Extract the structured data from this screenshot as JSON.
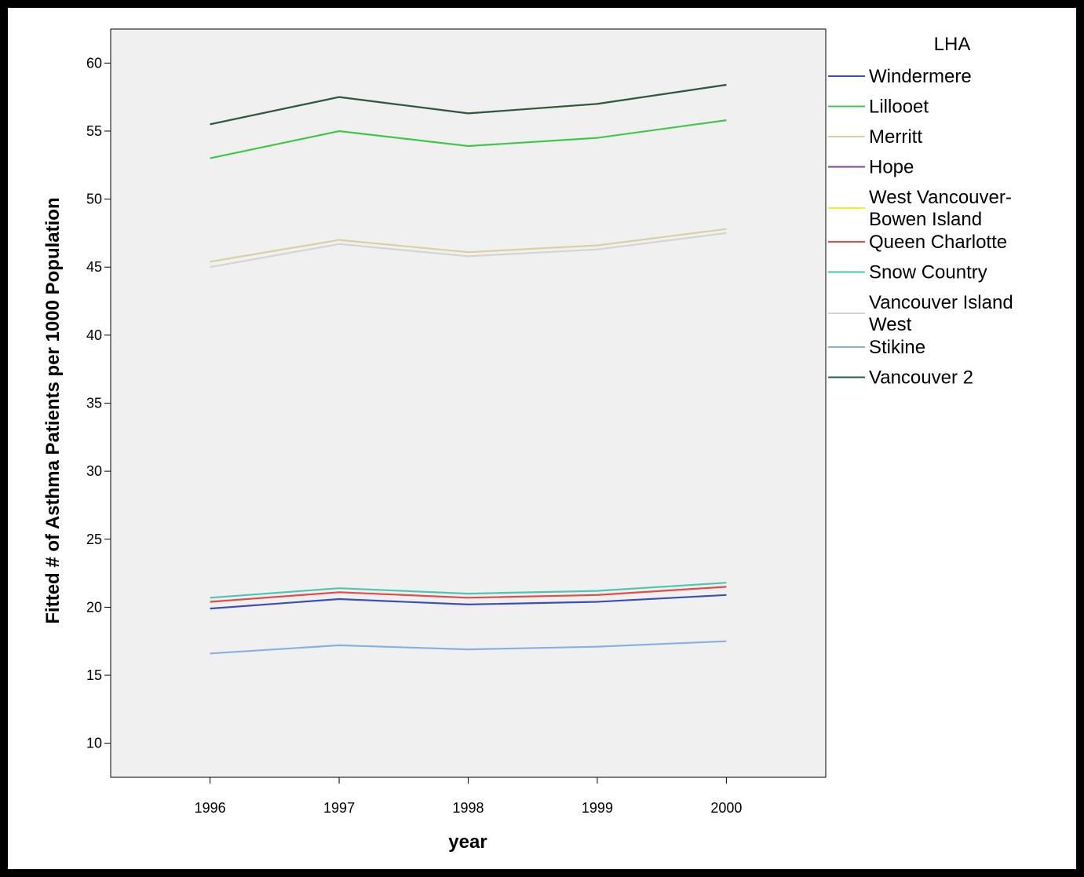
{
  "chart_data": {
    "type": "line",
    "title": "",
    "xlabel": "year",
    "ylabel": "Fitted # of Asthma Patients per 1000 Population",
    "x": [
      1996,
      1997,
      1998,
      1999,
      2000
    ],
    "xlim": [
      1995.23,
      2000.77
    ],
    "ylim": [
      7.5,
      62.5
    ],
    "yticks": [
      10,
      15,
      20,
      25,
      30,
      35,
      40,
      45,
      50,
      55,
      60
    ],
    "grid": false,
    "legend_title": "LHA",
    "legend_position": "right",
    "series": [
      {
        "name": [
          "Windermere"
        ],
        "color": "#3b4fb8",
        "values": [
          19.9,
          20.6,
          20.2,
          20.4,
          20.9
        ]
      },
      {
        "name": [
          "Lillooet"
        ],
        "color": "#3ec84a",
        "values": [
          53.0,
          55.0,
          53.9,
          54.5,
          55.8
        ]
      },
      {
        "name": [
          "Merritt"
        ],
        "color": "#d8d0a0",
        "values": [
          45.4,
          47.0,
          46.1,
          46.6,
          47.8
        ]
      },
      {
        "name": [
          "Hope"
        ],
        "color": "#8a3fa0",
        "values": [
          55.5,
          57.5,
          56.3,
          57.0,
          58.4
        ]
      },
      {
        "name": [
          "West Vancouver-",
          "Bowen Island"
        ],
        "color": "#f0f030",
        "values": [
          55.5,
          57.5,
          56.3,
          57.0,
          58.4
        ]
      },
      {
        "name": [
          "Queen Charlotte"
        ],
        "color": "#e84848",
        "values": [
          20.4,
          21.1,
          20.7,
          20.9,
          21.5
        ]
      },
      {
        "name": [
          "Snow Country"
        ],
        "color": "#48c8b0",
        "values": [
          20.7,
          21.4,
          21.0,
          21.2,
          21.8
        ]
      },
      {
        "name": [
          "Vancouver Island",
          "West"
        ],
        "color": "#d4d4d4",
        "values": [
          45.0,
          46.7,
          45.8,
          46.3,
          47.5
        ]
      },
      {
        "name": [
          "Stikine"
        ],
        "color": "#88b0e0",
        "values": [
          16.6,
          17.2,
          16.9,
          17.1,
          17.5
        ]
      },
      {
        "name": [
          "Vancouver 2"
        ],
        "color": "#2a5a48",
        "values": [
          55.5,
          57.5,
          56.3,
          57.0,
          58.4
        ]
      }
    ]
  }
}
